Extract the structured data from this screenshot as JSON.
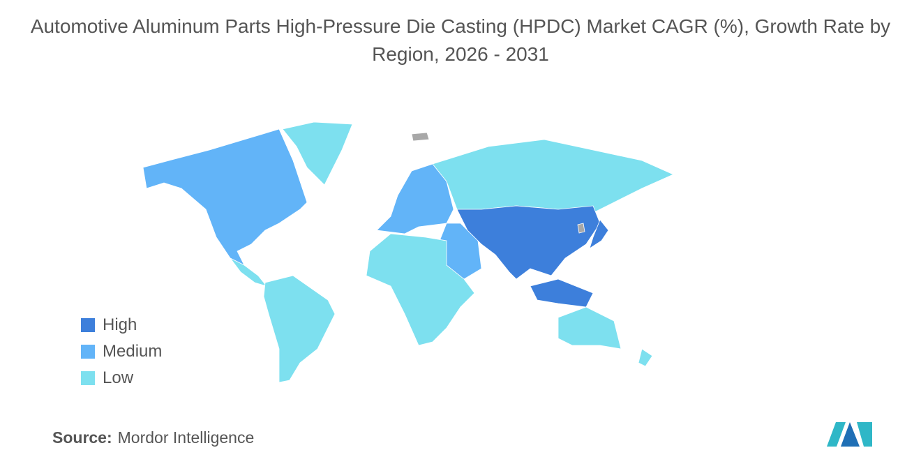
{
  "title": "Automotive Aluminum Parts High-Pressure Die Casting (HPDC) Market CAGR (%), Growth Rate by Region, 2026 - 2031",
  "legend": [
    {
      "label": "High",
      "color": "#3d7fdb"
    },
    {
      "label": "Medium",
      "color": "#62b4f8"
    },
    {
      "label": "Low",
      "color": "#7de0ef"
    }
  ],
  "no_data_color": "#a8a8a8",
  "source": {
    "label": "Source:",
    "text": "Mordor Intelligence"
  }
}
